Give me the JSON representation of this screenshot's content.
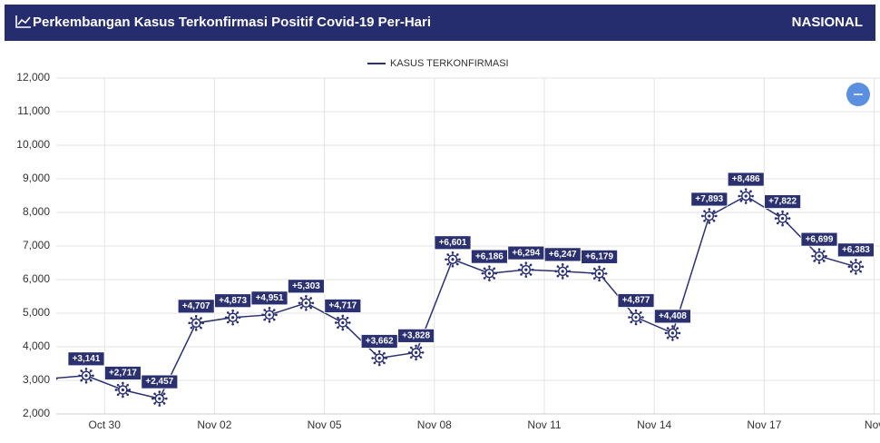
{
  "header": {
    "title": "Perkembangan Kasus Terkonfirmasi Positif Covid-19 Per-Hari",
    "scope": "NASIONAL"
  },
  "chart_data": {
    "type": "line",
    "categories": [
      null,
      "Oct 30",
      null,
      null,
      "Nov 02",
      null,
      null,
      "Nov 05",
      null,
      null,
      "Nov 08",
      null,
      null,
      "Nov 11",
      null,
      null,
      "Nov 14",
      null,
      null,
      "Nov 17",
      null,
      null,
      "Nov"
    ],
    "series": [
      {
        "name": "KASUS TERKONFIRMASI",
        "color": "#2b3070",
        "values": [
          3050,
          3141,
          2717,
          2457,
          4707,
          4873,
          4951,
          5303,
          4717,
          3662,
          3828,
          6601,
          6186,
          6294,
          6247,
          6179,
          4877,
          4408,
          7893,
          8486,
          7822,
          6699,
          6383
        ],
        "value_labels": [
          null,
          "+3,141",
          "+2,717",
          "+2,457",
          "+4,707",
          "+4,873",
          "+4,951",
          "+5,303",
          "+4,717",
          "+3,662",
          "+3,828",
          "+6,601",
          "+6,186",
          "+6,294",
          "+6,247",
          "+6,179",
          "+4,877",
          "+4,408",
          "+7,893",
          "+8,486",
          "+7,822",
          "+6,699",
          "+6,383"
        ]
      }
    ],
    "ylim": [
      2000,
      12000
    ],
    "yticks": [
      {
        "value": 2000,
        "label": "2,000"
      },
      {
        "value": 3000,
        "label": "3,000"
      },
      {
        "value": 4000,
        "label": "4,000"
      },
      {
        "value": 5000,
        "label": "5,000"
      },
      {
        "value": 6000,
        "label": "6,000"
      },
      {
        "value": 7000,
        "label": "7,000"
      },
      {
        "value": 8000,
        "label": "8,000"
      },
      {
        "value": 9000,
        "label": "9,000"
      },
      {
        "value": 10000,
        "label": "10,000"
      },
      {
        "value": 11000,
        "label": "11,000"
      },
      {
        "value": 12000,
        "label": "12,000"
      }
    ],
    "grid": true
  }
}
